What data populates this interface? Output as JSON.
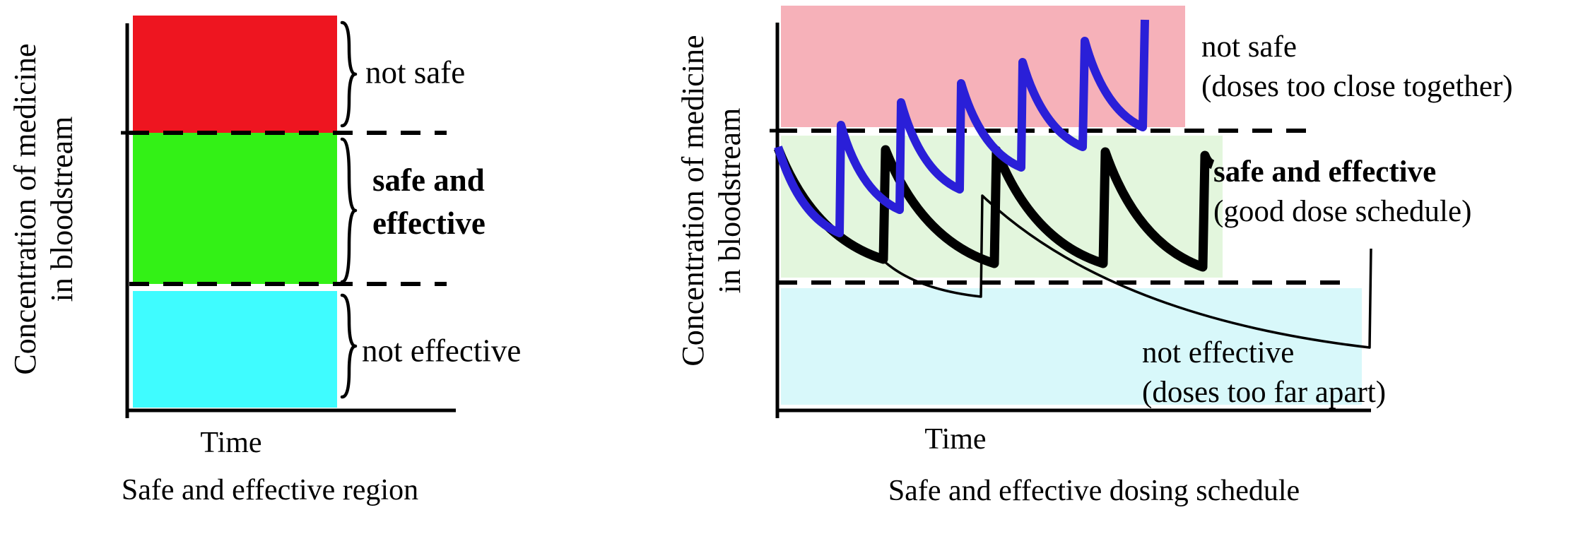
{
  "left_chart": {
    "y_axis_label_line1": "Concentration of medicine",
    "y_axis_label_line2": "in bloodstream",
    "x_axis_label": "Time",
    "caption": "Safe and effective region",
    "labels": {
      "not_safe": "not safe",
      "safe_effective_line1": "safe and",
      "safe_effective_line2": "effective",
      "not_effective": "not effective"
    }
  },
  "right_chart": {
    "y_axis_label_line1": "Concentration of medicine",
    "y_axis_label_line2": "in bloodstream",
    "x_axis_label": "Time",
    "caption": "Safe and effective dosing schedule",
    "labels": {
      "not_safe_line1": "not safe",
      "not_safe_line2": "(doses too close together)",
      "safe_effective_line1": "safe and effective",
      "safe_effective_line2": "(good dose schedule)",
      "not_effective_line1": "not effective",
      "not_effective_line2": "(doses too far apart)"
    }
  },
  "chart_data": [
    {
      "type": "bands",
      "title": "Safe and effective region",
      "xlabel": "Time",
      "ylabel": "Concentration of medicine in bloodstream",
      "axes_numeric": false,
      "bands": [
        {
          "label": "not safe",
          "position": "top",
          "color": "#ee1520"
        },
        {
          "label": "safe and effective",
          "position": "middle",
          "color": "#33f116"
        },
        {
          "label": "not effective",
          "position": "bottom",
          "color": "#3ffcff"
        }
      ]
    },
    {
      "type": "line",
      "title": "Safe and effective dosing schedule",
      "xlabel": "Time",
      "ylabel": "Concentration of medicine in bloodstream",
      "axes_numeric": false,
      "units": "px",
      "bands": [
        {
          "label": "not safe (doses too close together)",
          "position": "top",
          "color": "#f6b1b9"
        },
        {
          "label": "safe and effective (good dose schedule)",
          "position": "middle",
          "color": "#e3f6dd"
        },
        {
          "label": "not effective (doses too far apart)",
          "position": "bottom",
          "color": "#d8f8fa"
        }
      ],
      "series": [
        {
          "name": "doses too close together",
          "color": "#2a1fd8",
          "stroke_width": 12,
          "segments": [
            [
              "M",
              1101,
              208
            ],
            [
              "d",
              1188,
              330
            ],
            [
              "r",
              1190,
              177
            ],
            [
              "d",
              1273,
              297
            ],
            [
              "r",
              1275,
              145
            ],
            [
              "d",
              1358,
              268
            ],
            [
              "r",
              1360,
              118
            ],
            [
              "d",
              1445,
              237
            ],
            [
              "r",
              1447,
              88
            ],
            [
              "d",
              1532,
              208
            ],
            [
              "r",
              1535,
              58
            ],
            [
              "d",
              1617,
              180
            ],
            [
              "r",
              1620,
              28
            ]
          ]
        },
        {
          "name": "good dose schedule",
          "color": "#000000",
          "stroke_width": 13,
          "segments": [
            [
              "M",
              1101,
              210
            ],
            [
              "d",
              1250,
              367
            ],
            [
              "r",
              1253,
              212
            ],
            [
              "d",
              1407,
              373
            ],
            [
              "r",
              1410,
              213
            ],
            [
              "d",
              1561,
              373
            ],
            [
              "r",
              1564,
              215
            ],
            [
              "d",
              1702,
              378
            ],
            [
              "r",
              1705,
              220
            ],
            [
              "d",
              1716,
              233
            ]
          ]
        },
        {
          "name": "doses too far apart",
          "color": "#000000",
          "stroke_width": 3.5,
          "segments": [
            [
              "M",
              1101,
              212
            ],
            [
              "d",
              1250,
              369
            ],
            [
              "d",
              1388,
              420
            ],
            [
              "r",
              1390,
              277
            ],
            [
              "d",
              1938,
              492
            ],
            [
              "r",
              1940,
              352
            ]
          ]
        }
      ]
    }
  ]
}
